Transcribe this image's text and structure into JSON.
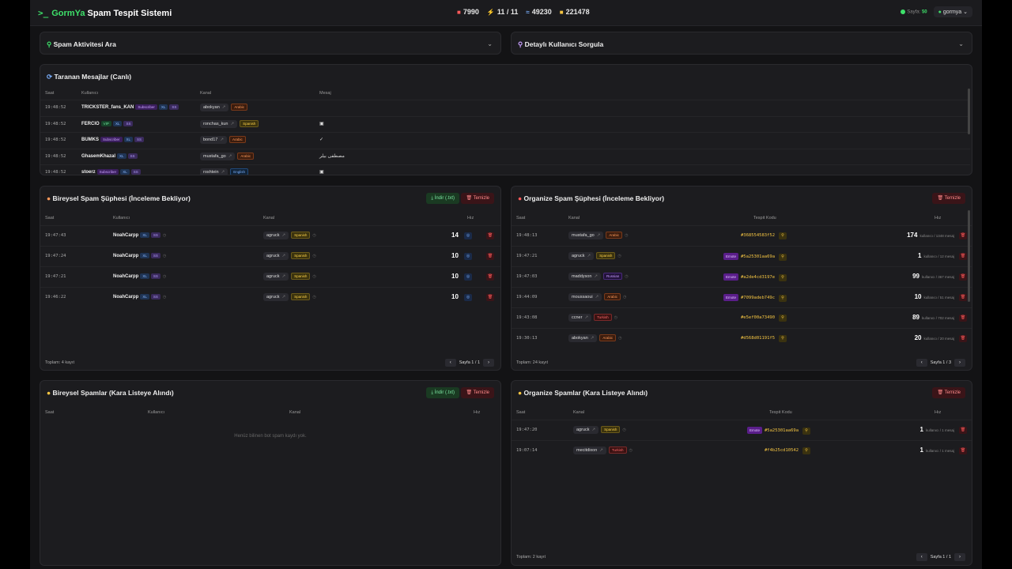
{
  "brand": {
    "logo": ">_",
    "gorm": "GormYa",
    "rest": " Spam Tespit Sistemi"
  },
  "stats": [
    {
      "icon": "■",
      "color": "#ff5a5a",
      "value": "7990"
    },
    {
      "icon": "⚡",
      "color": "#a78bfa",
      "value": "11 / 11"
    },
    {
      "icon": "≈",
      "color": "#7ab0ff",
      "value": "49230"
    },
    {
      "icon": "■",
      "color": "#f5c542",
      "value": "221478"
    }
  ],
  "top": {
    "page_label": "Sayfa:",
    "page_value": "50",
    "user": "gormya"
  },
  "search1": "Spam Aktivitesi Ara",
  "search2": "Detaylı Kullanıcı Sorgula",
  "live": {
    "title": "Taranan Mesajlar (Canlı)",
    "headers": [
      "Saat",
      "Kullanıcı",
      "Kanal",
      "Mesaj"
    ],
    "rows": [
      {
        "time": "19:48:52",
        "user": "TRICKSTER_fans_KAN",
        "tags": [
          "Subscriber",
          "XL",
          "SS"
        ],
        "channel": "abokyan",
        "lang": "Arabic",
        "msg": ""
      },
      {
        "time": "19:48:52",
        "user": "FERCIO",
        "tags": [
          "VIP",
          "XL",
          "SS"
        ],
        "channel": "ronchas_kun",
        "lang": "Spanish",
        "msg": "▣"
      },
      {
        "time": "19:48:52",
        "user": "BUMKS",
        "tags": [
          "Subscriber",
          "XL",
          "SS"
        ],
        "channel": "bond17",
        "lang": "Arabic",
        "msg": "✓"
      },
      {
        "time": "19:48:52",
        "user": "GhasemKhazal",
        "tags": [
          "XL",
          "SS"
        ],
        "channel": "mustafa_go",
        "lang": "Arabic",
        "msg": "مصطفى بيلر"
      },
      {
        "time": "19:48:52",
        "user": "stoerz",
        "tags": [
          "Subscriber",
          "XL",
          "SS"
        ],
        "channel": "roshtein",
        "lang": "English",
        "msg": "▣"
      }
    ]
  },
  "indiv_sus": {
    "title": "Bireysel Spam Şüphesi (İnceleme Bekliyor)",
    "download": "İndir (.txt)",
    "clear": "Temizle",
    "headers": [
      "Saat",
      "Kullanıcı",
      "Kanal",
      "Hız"
    ],
    "rows": [
      {
        "time": "19:47:43",
        "user": "NoahCarpp",
        "channel": "agruck",
        "lang": "Spanish",
        "speed": "14"
      },
      {
        "time": "19:47:24",
        "user": "NoahCarpp",
        "channel": "agruck",
        "lang": "Spanish",
        "speed": "10"
      },
      {
        "time": "19:47:21",
        "user": "NoahCarpp",
        "channel": "agruck",
        "lang": "Spanish",
        "speed": "10"
      },
      {
        "time": "19:46:22",
        "user": "NoahCarpp",
        "channel": "agruck",
        "lang": "Spanish",
        "speed": "10"
      }
    ],
    "total": "Toplam: 4 kayıt",
    "page": "Sayfa 1 / 1"
  },
  "org_sus": {
    "title": "Organize Spam Şüphesi (İnceleme Bekliyor)",
    "clear": "Temizle",
    "headers": [
      "Saat",
      "Kanal",
      "Tespit Kodu",
      "Hız"
    ],
    "rows": [
      {
        "time": "19:48:13",
        "channel": "mustafa_go",
        "lang": "Arabic",
        "emote": false,
        "code": "#368554583f52",
        "speed": "174",
        "detail": "kullanıcı / 1348 mesaj"
      },
      {
        "time": "19:47:21",
        "channel": "agruck",
        "lang": "Spanish",
        "emote": true,
        "code": "#5a25301aa69a",
        "speed": "1",
        "detail": "kullanıcı / 12 mesaj"
      },
      {
        "time": "19:47:03",
        "channel": "maddyson",
        "lang": "Russian",
        "emote": true,
        "code": "#a2de4cd3197e",
        "speed": "99",
        "detail": "kullanıcı / 367 mesaj"
      },
      {
        "time": "19:44:09",
        "channel": "moussaoui",
        "lang": "Arabic",
        "emote": true,
        "code": "#7099adeb749c",
        "speed": "10",
        "detail": "kullanıcı / 51 mesaj"
      },
      {
        "time": "19:43:08",
        "channel": "ccner",
        "lang": "Turkish",
        "emote": false,
        "code": "#e5ef00a73490",
        "speed": "89",
        "detail": "kullanıcı / 702 mesaj"
      },
      {
        "time": "19:30:13",
        "channel": "abokyan",
        "lang": "Arabic",
        "emote": false,
        "code": "#d568d01191f5",
        "speed": "20",
        "detail": "kullanıcı / 20 mesaj"
      }
    ],
    "total": "Toplam: 24 kayıt",
    "page": "Sayfa 1 / 3",
    "emote_label": "Emote"
  },
  "indiv_bl": {
    "title": "Bireysel Spamlar (Kara Listeye Alındı)",
    "download": "İndir (.txt)",
    "clear": "Temizle",
    "headers": [
      "Saat",
      "Kullanıcı",
      "Kanal",
      "Hız"
    ],
    "empty": "Henüz bilinen bot spam kaydı yok."
  },
  "org_bl": {
    "title": "Organize Spamlar (Kara Listeye Alındı)",
    "clear": "Temizle",
    "headers": [
      "Saat",
      "Kanal",
      "Tespit Kodu",
      "Hız"
    ],
    "rows": [
      {
        "time": "19:47:20",
        "channel": "agruck",
        "lang": "Spanish",
        "emote": true,
        "code": "#5a25301aa69a",
        "speed": "1",
        "detail": "kullanıcı / 1 mesaj"
      },
      {
        "time": "19:07:14",
        "channel": "mecitdixon",
        "lang": "Turkish",
        "emote": false,
        "code": "#f4b25cd10542",
        "speed": "1",
        "detail": "kullanıcı / 1 mesaj"
      }
    ],
    "total": "Toplam: 2 kayıt",
    "page": "Sayfa 1 / 1"
  }
}
